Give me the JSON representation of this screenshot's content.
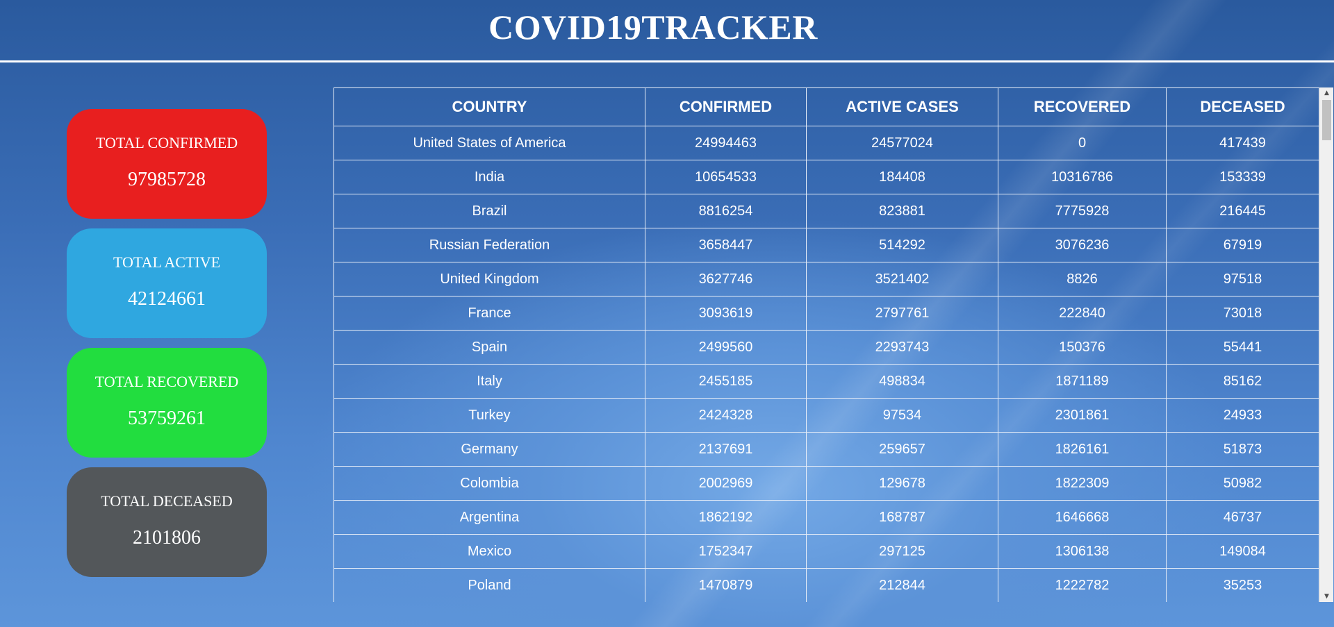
{
  "header": {
    "title": "COVID19TRACKER"
  },
  "summary": {
    "confirmed": {
      "label": "TOTAL CONFIRMED",
      "value": "97985728",
      "color": "#e81f1f"
    },
    "active": {
      "label": "TOTAL ACTIVE",
      "value": "42124661",
      "color": "#2fa7e0"
    },
    "recovered": {
      "label": "TOTAL RECOVERED",
      "value": "53759261",
      "color": "#22dd3f"
    },
    "deceased": {
      "label": "TOTAL DECEASED",
      "value": "2101806",
      "color": "#53575a"
    }
  },
  "table": {
    "columns": [
      "COUNTRY",
      "CONFIRMED",
      "ACTIVE CASES",
      "RECOVERED",
      "DECEASED"
    ],
    "rows": [
      [
        "United States of America",
        "24994463",
        "24577024",
        "0",
        "417439"
      ],
      [
        "India",
        "10654533",
        "184408",
        "10316786",
        "153339"
      ],
      [
        "Brazil",
        "8816254",
        "823881",
        "7775928",
        "216445"
      ],
      [
        "Russian Federation",
        "3658447",
        "514292",
        "3076236",
        "67919"
      ],
      [
        "United Kingdom",
        "3627746",
        "3521402",
        "8826",
        "97518"
      ],
      [
        "France",
        "3093619",
        "2797761",
        "222840",
        "73018"
      ],
      [
        "Spain",
        "2499560",
        "2293743",
        "150376",
        "55441"
      ],
      [
        "Italy",
        "2455185",
        "498834",
        "1871189",
        "85162"
      ],
      [
        "Turkey",
        "2424328",
        "97534",
        "2301861",
        "24933"
      ],
      [
        "Germany",
        "2137691",
        "259657",
        "1826161",
        "51873"
      ],
      [
        "Colombia",
        "2002969",
        "129678",
        "1822309",
        "50982"
      ],
      [
        "Argentina",
        "1862192",
        "168787",
        "1646668",
        "46737"
      ],
      [
        "Mexico",
        "1752347",
        "297125",
        "1306138",
        "149084"
      ],
      [
        "Poland",
        "1470879",
        "212844",
        "1222782",
        "35253"
      ]
    ]
  }
}
